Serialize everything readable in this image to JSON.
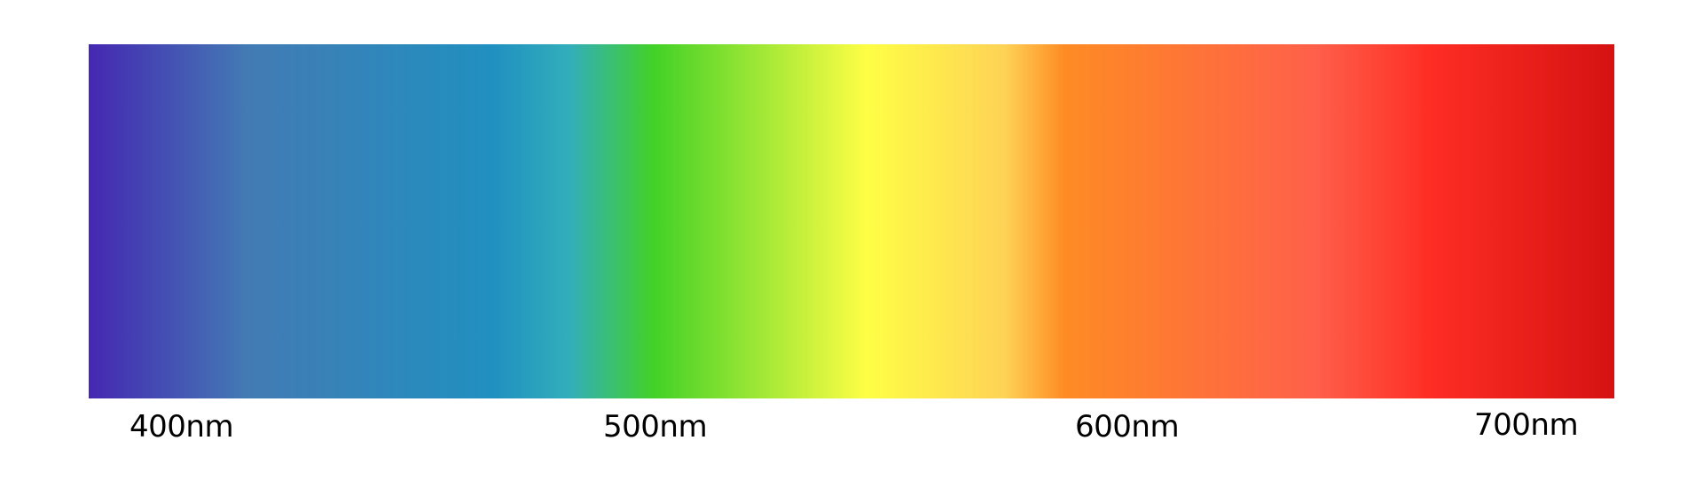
{
  "spectrum": {
    "colors": [
      "#4527b2",
      "#437bb4",
      "#2090c0",
      "#32aebb",
      "#42d127",
      "#fefe45",
      "#fed356",
      "#fe8b24",
      "#fe5f4a",
      "#fe2d24",
      "#d51212"
    ],
    "labels": [
      "400nm",
      "500nm",
      "600nm",
      "700nm"
    ]
  }
}
